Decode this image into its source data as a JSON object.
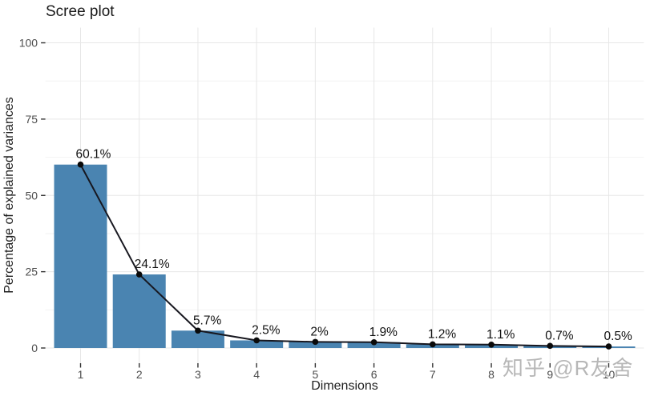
{
  "chart_data": {
    "type": "bar",
    "title": "Scree plot",
    "xlabel": "Dimensions",
    "ylabel": "Percentage of explained variances",
    "categories": [
      "1",
      "2",
      "3",
      "4",
      "5",
      "6",
      "7",
      "8",
      "9",
      "10"
    ],
    "values": [
      60.1,
      24.1,
      5.7,
      2.5,
      2,
      1.9,
      1.2,
      1.1,
      0.7,
      0.5
    ],
    "value_labels": [
      "60.1%",
      "24.1%",
      "5.7%",
      "2.5%",
      "2%",
      "1.9%",
      "1.2%",
      "1.1%",
      "0.7%",
      "0.5%"
    ],
    "yticks": [
      0,
      25,
      50,
      75,
      100
    ],
    "ylim": [
      0,
      100
    ],
    "grid": true,
    "legend": "none",
    "overlay": "line-with-points",
    "colors": {
      "bar_fill": "#4a84b1",
      "line": "#17171f",
      "point": "#0a0a0a",
      "grid_major": "#e7e7e7",
      "grid_minor": "#f2f2f2",
      "tick": "#333333",
      "tick_label": "#4d4d4d",
      "value_label": "#111111"
    }
  },
  "watermark": {
    "text": "知乎 @R友舍"
  }
}
